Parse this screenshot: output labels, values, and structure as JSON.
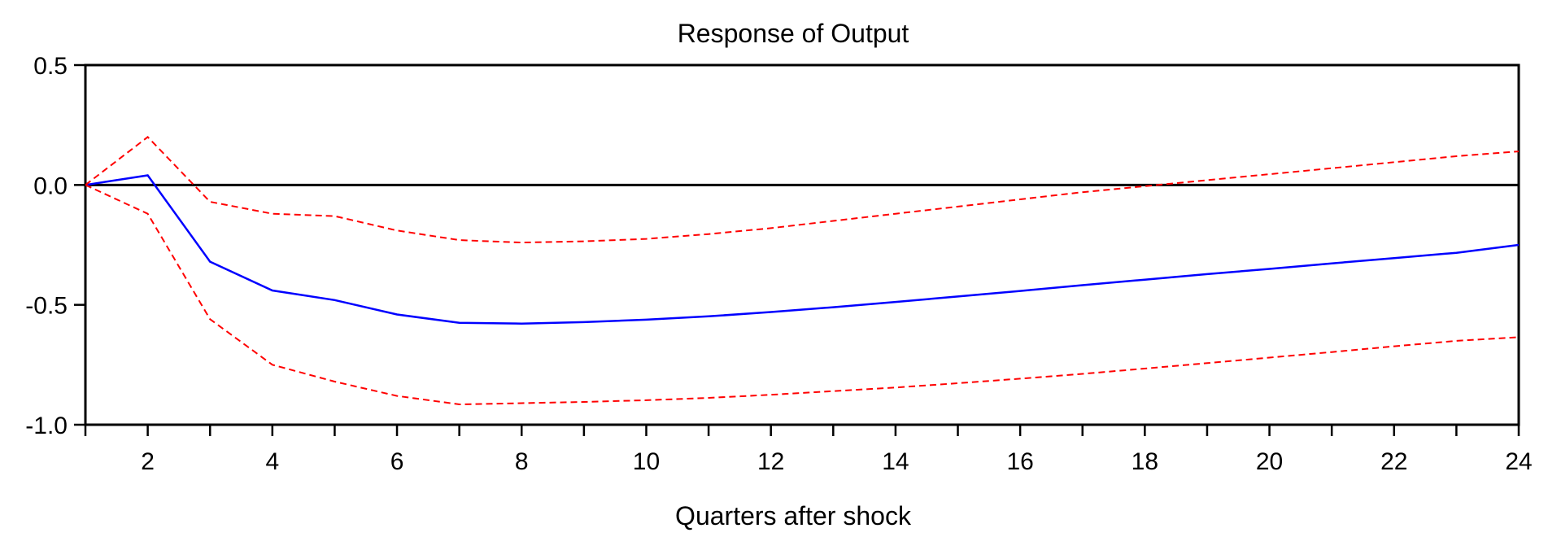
{
  "chart_data": {
    "type": "line",
    "title": "Response of Output",
    "xlabel": "Quarters after shock",
    "ylabel": "",
    "xlim": [
      1,
      24
    ],
    "ylim": [
      -1.0,
      0.5
    ],
    "x_ticks": [
      2,
      4,
      6,
      8,
      10,
      12,
      14,
      16,
      18,
      20,
      22,
      24
    ],
    "y_ticks": [
      "0.5",
      "0.0",
      "-0.5",
      "-1.0"
    ],
    "y_tick_values": [
      0.5,
      0.0,
      -0.5,
      -1.0
    ],
    "grid": false,
    "reference_line": 0.0,
    "x": [
      1,
      2,
      3,
      4,
      5,
      6,
      7,
      8,
      9,
      10,
      11,
      12,
      13,
      14,
      15,
      16,
      17,
      18,
      19,
      20,
      21,
      22,
      23,
      24
    ],
    "series": [
      {
        "style": "solid",
        "color": "#0000ff",
        "values": [
          0.0,
          0.04,
          -0.32,
          -0.44,
          -0.48,
          -0.54,
          -0.575,
          -0.578,
          -0.572,
          -0.562,
          -0.548,
          -0.53,
          -0.51,
          -0.488,
          -0.465,
          -0.442,
          -0.418,
          -0.395,
          -0.372,
          -0.35,
          -0.327,
          -0.305,
          -0.283,
          -0.25
        ]
      },
      {
        "style": "dashed",
        "color": "#ff0000",
        "values": [
          0.0,
          0.2,
          -0.07,
          -0.12,
          -0.13,
          -0.19,
          -0.23,
          -0.24,
          -0.235,
          -0.225,
          -0.205,
          -0.18,
          -0.15,
          -0.12,
          -0.09,
          -0.06,
          -0.03,
          -0.005,
          0.02,
          0.045,
          0.07,
          0.095,
          0.12,
          0.14
        ]
      },
      {
        "style": "dashed",
        "color": "#ff0000",
        "values": [
          0.0,
          -0.12,
          -0.56,
          -0.75,
          -0.82,
          -0.88,
          -0.915,
          -0.91,
          -0.905,
          -0.898,
          -0.888,
          -0.875,
          -0.86,
          -0.845,
          -0.827,
          -0.808,
          -0.788,
          -0.766,
          -0.743,
          -0.72,
          -0.697,
          -0.673,
          -0.65,
          -0.635
        ]
      }
    ]
  }
}
